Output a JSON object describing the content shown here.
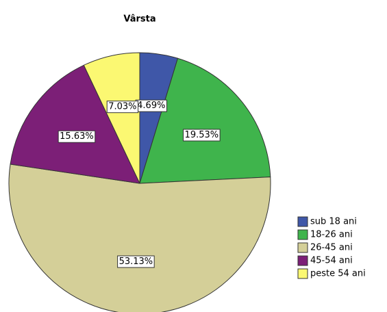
{
  "chart_data": {
    "type": "pie",
    "title": "Vârsta",
    "categories": [
      "sub 18 ani",
      "18-26 ani",
      "26-45 ani",
      "45-54 ani",
      "peste 54 ani"
    ],
    "values": [
      4.69,
      19.53,
      53.13,
      15.63,
      7.03
    ],
    "value_labels": [
      "4.69%",
      "19.53%",
      "53.13%",
      "15.63%",
      "7.03%"
    ],
    "colors": [
      "#3f57a8",
      "#3fb44c",
      "#d4cf98",
      "#7c1f77",
      "#fbf872"
    ]
  }
}
